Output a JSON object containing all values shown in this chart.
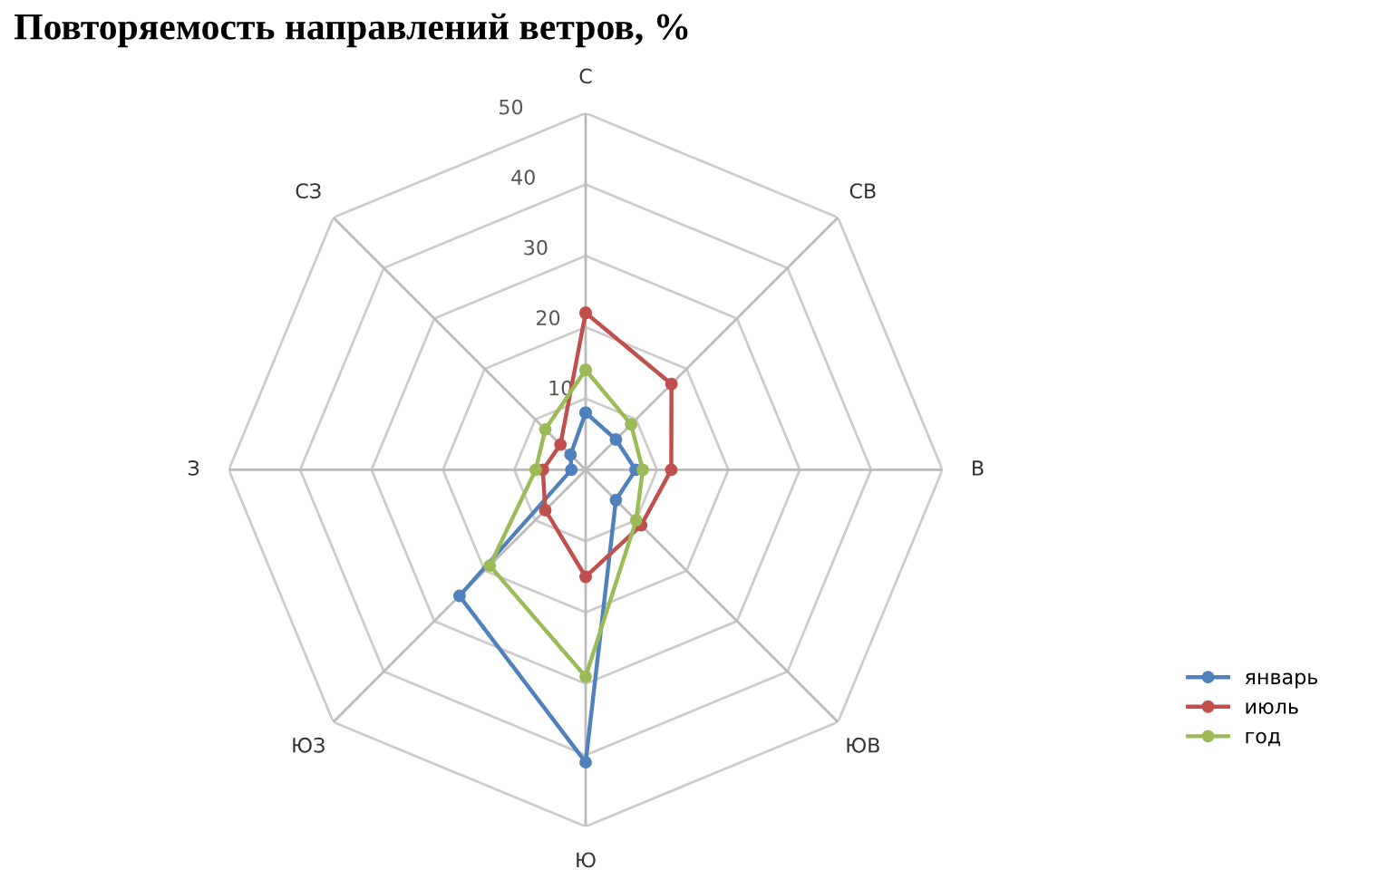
{
  "chart_data": {
    "type": "radar",
    "title": "Повторяемость направлений ветров, %",
    "categories": [
      "С",
      "СВ",
      "В",
      "ЮВ",
      "Ю",
      "ЮЗ",
      "З",
      "СЗ"
    ],
    "series": [
      {
        "name": "январь",
        "color": "#4f81bd",
        "values": [
          8,
          6,
          7,
          6,
          41,
          25,
          2,
          3
        ]
      },
      {
        "name": "июль",
        "color": "#c0504d",
        "values": [
          22,
          17,
          12,
          11,
          15,
          8,
          6,
          5
        ]
      },
      {
        "name": "год",
        "color": "#9bbb59",
        "values": [
          14,
          9,
          8,
          10,
          29,
          19,
          7,
          8
        ]
      }
    ],
    "ylim": [
      0,
      50
    ],
    "yticks": [
      10,
      20,
      30,
      40,
      50
    ],
    "grid": true,
    "legend": "bottom right",
    "marker": "circle"
  }
}
